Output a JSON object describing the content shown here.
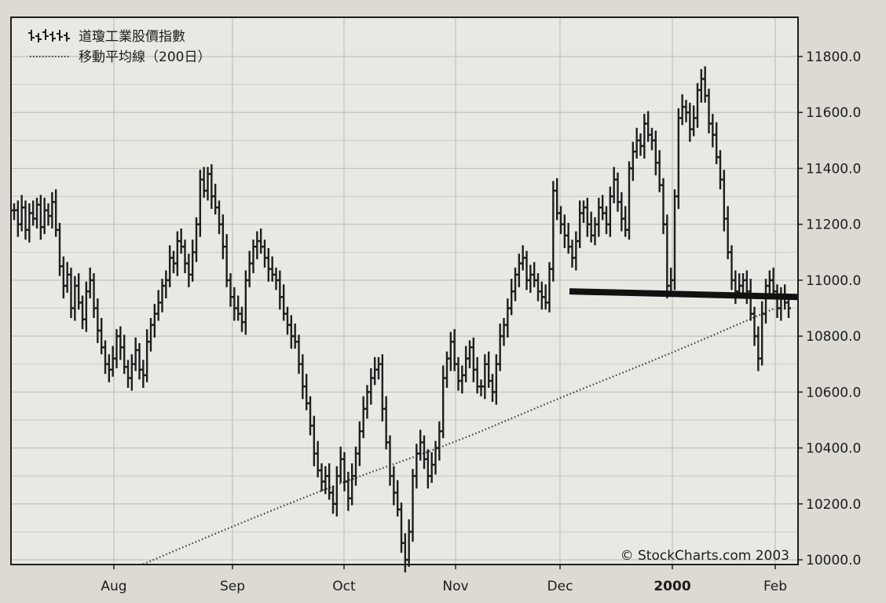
{
  "colors": {
    "page_background": "#dcdad3",
    "plot_background": "#e9e8e2",
    "grid": "#c2c1bb",
    "price_bars": "#1e1e1e",
    "moving_average": "#3a3a3a",
    "support_line": "#111111"
  },
  "chart_data": {
    "type": "line",
    "style": "ohlc-bars",
    "legend": {
      "placement": "top-left",
      "items": [
        {
          "label": "道瓊工業股價指數",
          "icon": "ohlc-bars-icon"
        },
        {
          "label": "移動平均線（200日）",
          "icon": "dotted-line-icon"
        }
      ]
    },
    "x_ticks": [
      "Aug",
      "Sep",
      "Oct",
      "Nov",
      "Dec",
      "2000",
      "Feb"
    ],
    "y_ticks": [
      "10000.0",
      "10200.0",
      "10400.0",
      "10600.0",
      "10800.0",
      "11000.0",
      "11200.0",
      "11400.0",
      "11600.0",
      "11800.0"
    ],
    "ylim": [
      10000,
      11800
    ],
    "y_axis_side": "right",
    "grid": true,
    "credit": "© StockCharts.com 2003",
    "series": [
      {
        "kind": "price",
        "x_start_month": "Jul",
        "close_path": [
          11250,
          11200,
          11260,
          11180,
          11240,
          11220,
          11270,
          11190,
          11250,
          11230,
          11280,
          11180,
          11050,
          10980,
          11020,
          10900,
          10980,
          10920,
          10860,
          10960,
          11000,
          10900,
          10820,
          10760,
          10700,
          10680,
          10720,
          10800,
          10760,
          10690,
          10650,
          10700,
          10750,
          10680,
          10660,
          10780,
          10840,
          10880,
          10920,
          10980,
          11000,
          11080,
          11060,
          11140,
          11120,
          11060,
          11020,
          11100,
          11200,
          11360,
          11320,
          11380,
          11300,
          11260,
          11200,
          11120,
          11000,
          10940,
          10900,
          10880,
          10850,
          11000,
          11060,
          11120,
          11140,
          11120,
          11080,
          11040,
          11020,
          11000,
          10940,
          10880,
          10840,
          10800,
          10780,
          10700,
          10620,
          10560,
          10480,
          10380,
          10320,
          10280,
          10300,
          10240,
          10200,
          10300,
          10360,
          10280,
          10220,
          10300,
          10380,
          10460,
          10540,
          10600,
          10650,
          10680,
          10700,
          10540,
          10420,
          10300,
          10240,
          10180,
          10060,
          10000,
          10100,
          10300,
          10380,
          10420,
          10360,
          10300,
          10340,
          10400,
          10460,
          10650,
          10720,
          10780,
          10700,
          10640,
          10660,
          10720,
          10760,
          10680,
          10620,
          10620,
          10700,
          10640,
          10600,
          10700,
          10800,
          10840,
          10900,
          10960,
          11020,
          11060,
          11080,
          11000,
          11020,
          11000,
          10960,
          10940,
          10920,
          11040,
          11320,
          11240,
          11200,
          11160,
          11120,
          11080,
          11140,
          11240,
          11260,
          11200,
          11160,
          11200,
          11260,
          11240,
          11200,
          11300,
          11360,
          11280,
          11220,
          11180,
          11400,
          11460,
          11500,
          11480,
          11560,
          11520,
          11500,
          11420,
          11340,
          11200,
          10980,
          11000,
          11300,
          11580,
          11620,
          11600,
          11540,
          11580,
          11680,
          11720,
          11660,
          11560,
          11520,
          11440,
          11360,
          11220,
          11100,
          11000,
          10960,
          10980,
          11000,
          10960,
          10880,
          10800,
          10720,
          10880,
          10980,
          11000,
          10960,
          10900,
          10940,
          10920,
          10900
        ]
      },
      {
        "kind": "moving_average",
        "points": [
          {
            "x": "Aug",
            "y": 9940
          },
          {
            "x": "Sep",
            "y": 10120
          },
          {
            "x": "Oct",
            "y": 10280
          },
          {
            "x": "Nov",
            "y": 10420
          },
          {
            "x": "Dec",
            "y": 10580
          },
          {
            "x": "2000",
            "y": 10740
          },
          {
            "x": "Feb",
            "y": 10900
          }
        ]
      },
      {
        "kind": "support_line",
        "from": {
          "x": "Dec",
          "y": 10960
        },
        "to": {
          "x": "Feb",
          "y": 10940
        }
      }
    ]
  }
}
